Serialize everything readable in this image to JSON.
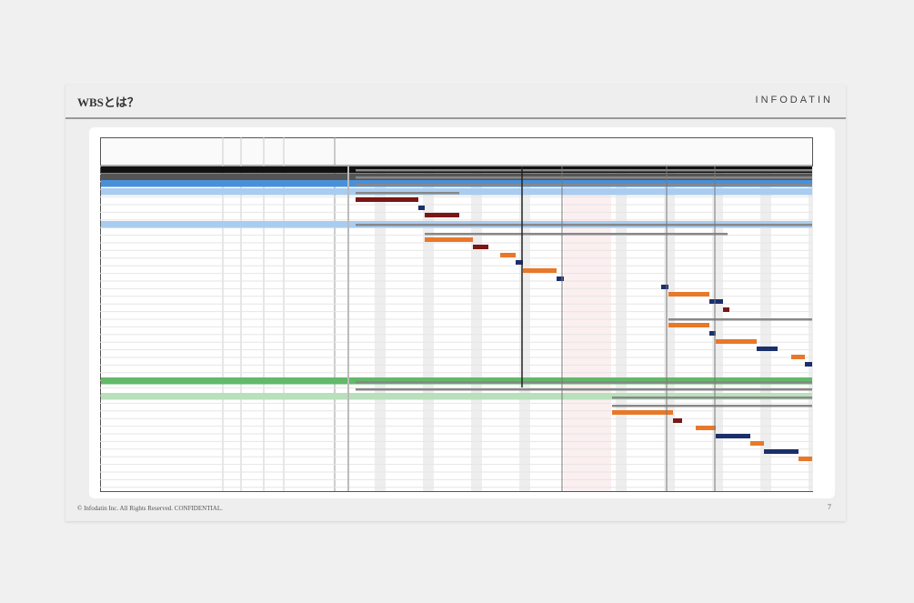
{
  "header": {
    "title": "WBSとは？",
    "logo": "INFODATIN"
  },
  "footer": {
    "copyright": "© Infodatin Inc. All Rights Reserved. CONFIDENTIAL.",
    "page": "7"
  }
}
